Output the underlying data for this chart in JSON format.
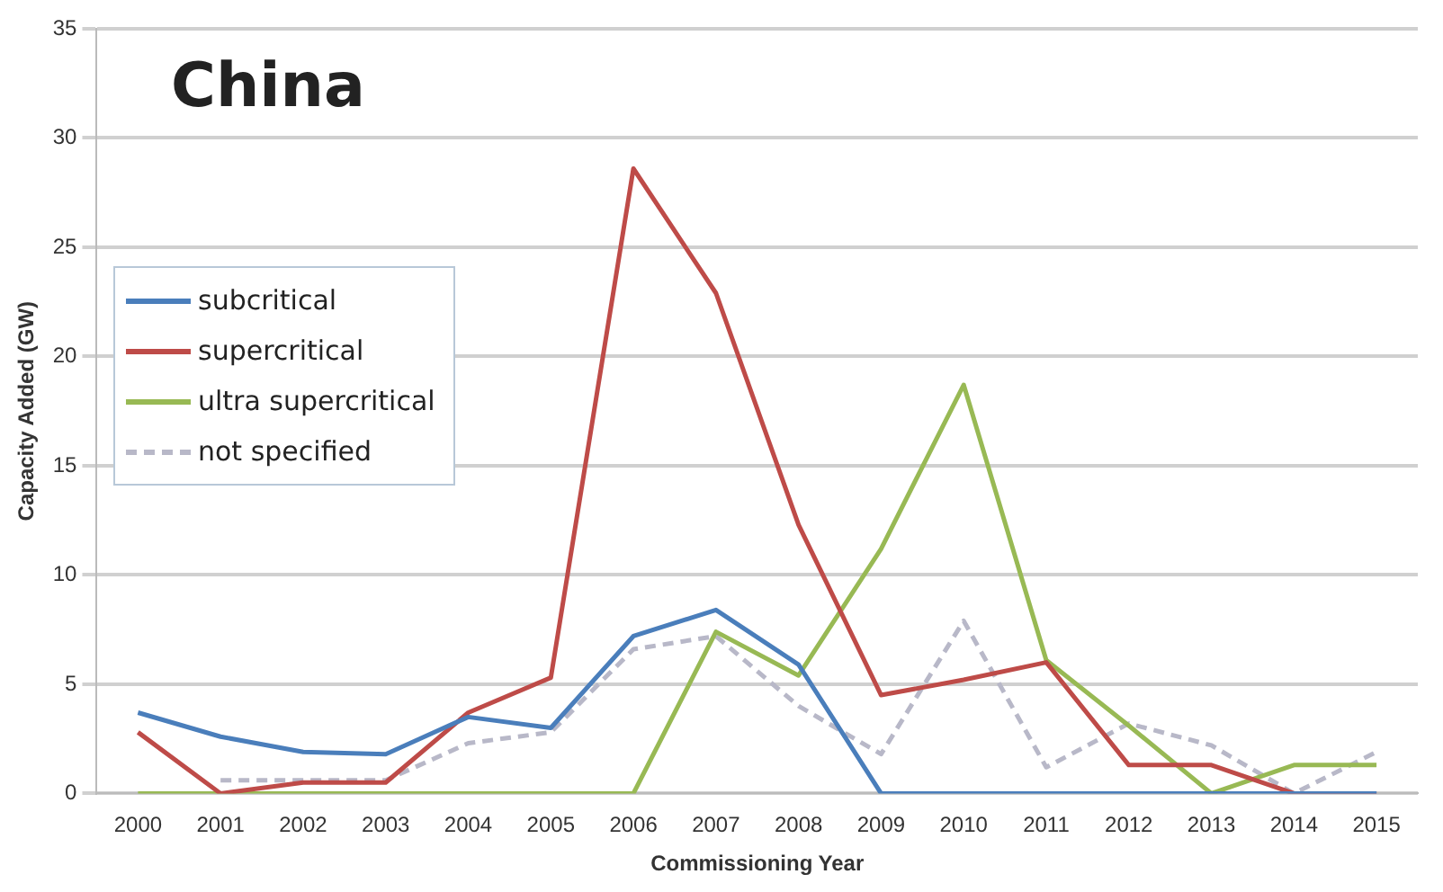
{
  "chart_data": {
    "type": "line",
    "title": "China",
    "xlabel": "Commissioning Year",
    "ylabel": "Capacity Added (GW)",
    "categories": [
      "2000",
      "2001",
      "2002",
      "2003",
      "2004",
      "2005",
      "2006",
      "2007",
      "2008",
      "2009",
      "2010",
      "2011",
      "2012",
      "2013",
      "2014",
      "2015"
    ],
    "series": [
      {
        "name": "subcritical",
        "color": "#4a7ebb",
        "values": [
          3.7,
          2.6,
          1.9,
          1.8,
          3.5,
          3.0,
          7.2,
          8.4,
          5.9,
          0,
          0,
          0,
          0,
          0,
          0,
          0
        ]
      },
      {
        "name": "supercritical",
        "color": "#be4b48",
        "values": [
          2.8,
          0,
          0.5,
          0.5,
          3.7,
          5.3,
          28.6,
          22.9,
          12.3,
          4.5,
          5.2,
          6.0,
          1.3,
          1.3,
          0,
          0
        ]
      },
      {
        "name": "ultra supercritical",
        "color": "#98b954",
        "values": [
          0,
          0,
          0,
          0,
          0,
          0,
          0,
          7.4,
          5.4,
          11.2,
          18.7,
          6.1,
          3.1,
          0,
          1.3,
          1.3
        ]
      },
      {
        "name": "not specified",
        "color": "#b8b8c8",
        "line_style": "dashed",
        "values": [
          null,
          0.6,
          0.6,
          0.6,
          2.3,
          2.8,
          6.6,
          7.2,
          4.0,
          1.8,
          7.9,
          1.2,
          3.2,
          2.2,
          0,
          1.9
        ]
      }
    ],
    "ylim": [
      0,
      35
    ],
    "yticks": [
      0,
      5,
      10,
      15,
      20,
      25,
      30,
      35
    ],
    "grid": "y",
    "legend": "top left",
    "marker": "none"
  }
}
